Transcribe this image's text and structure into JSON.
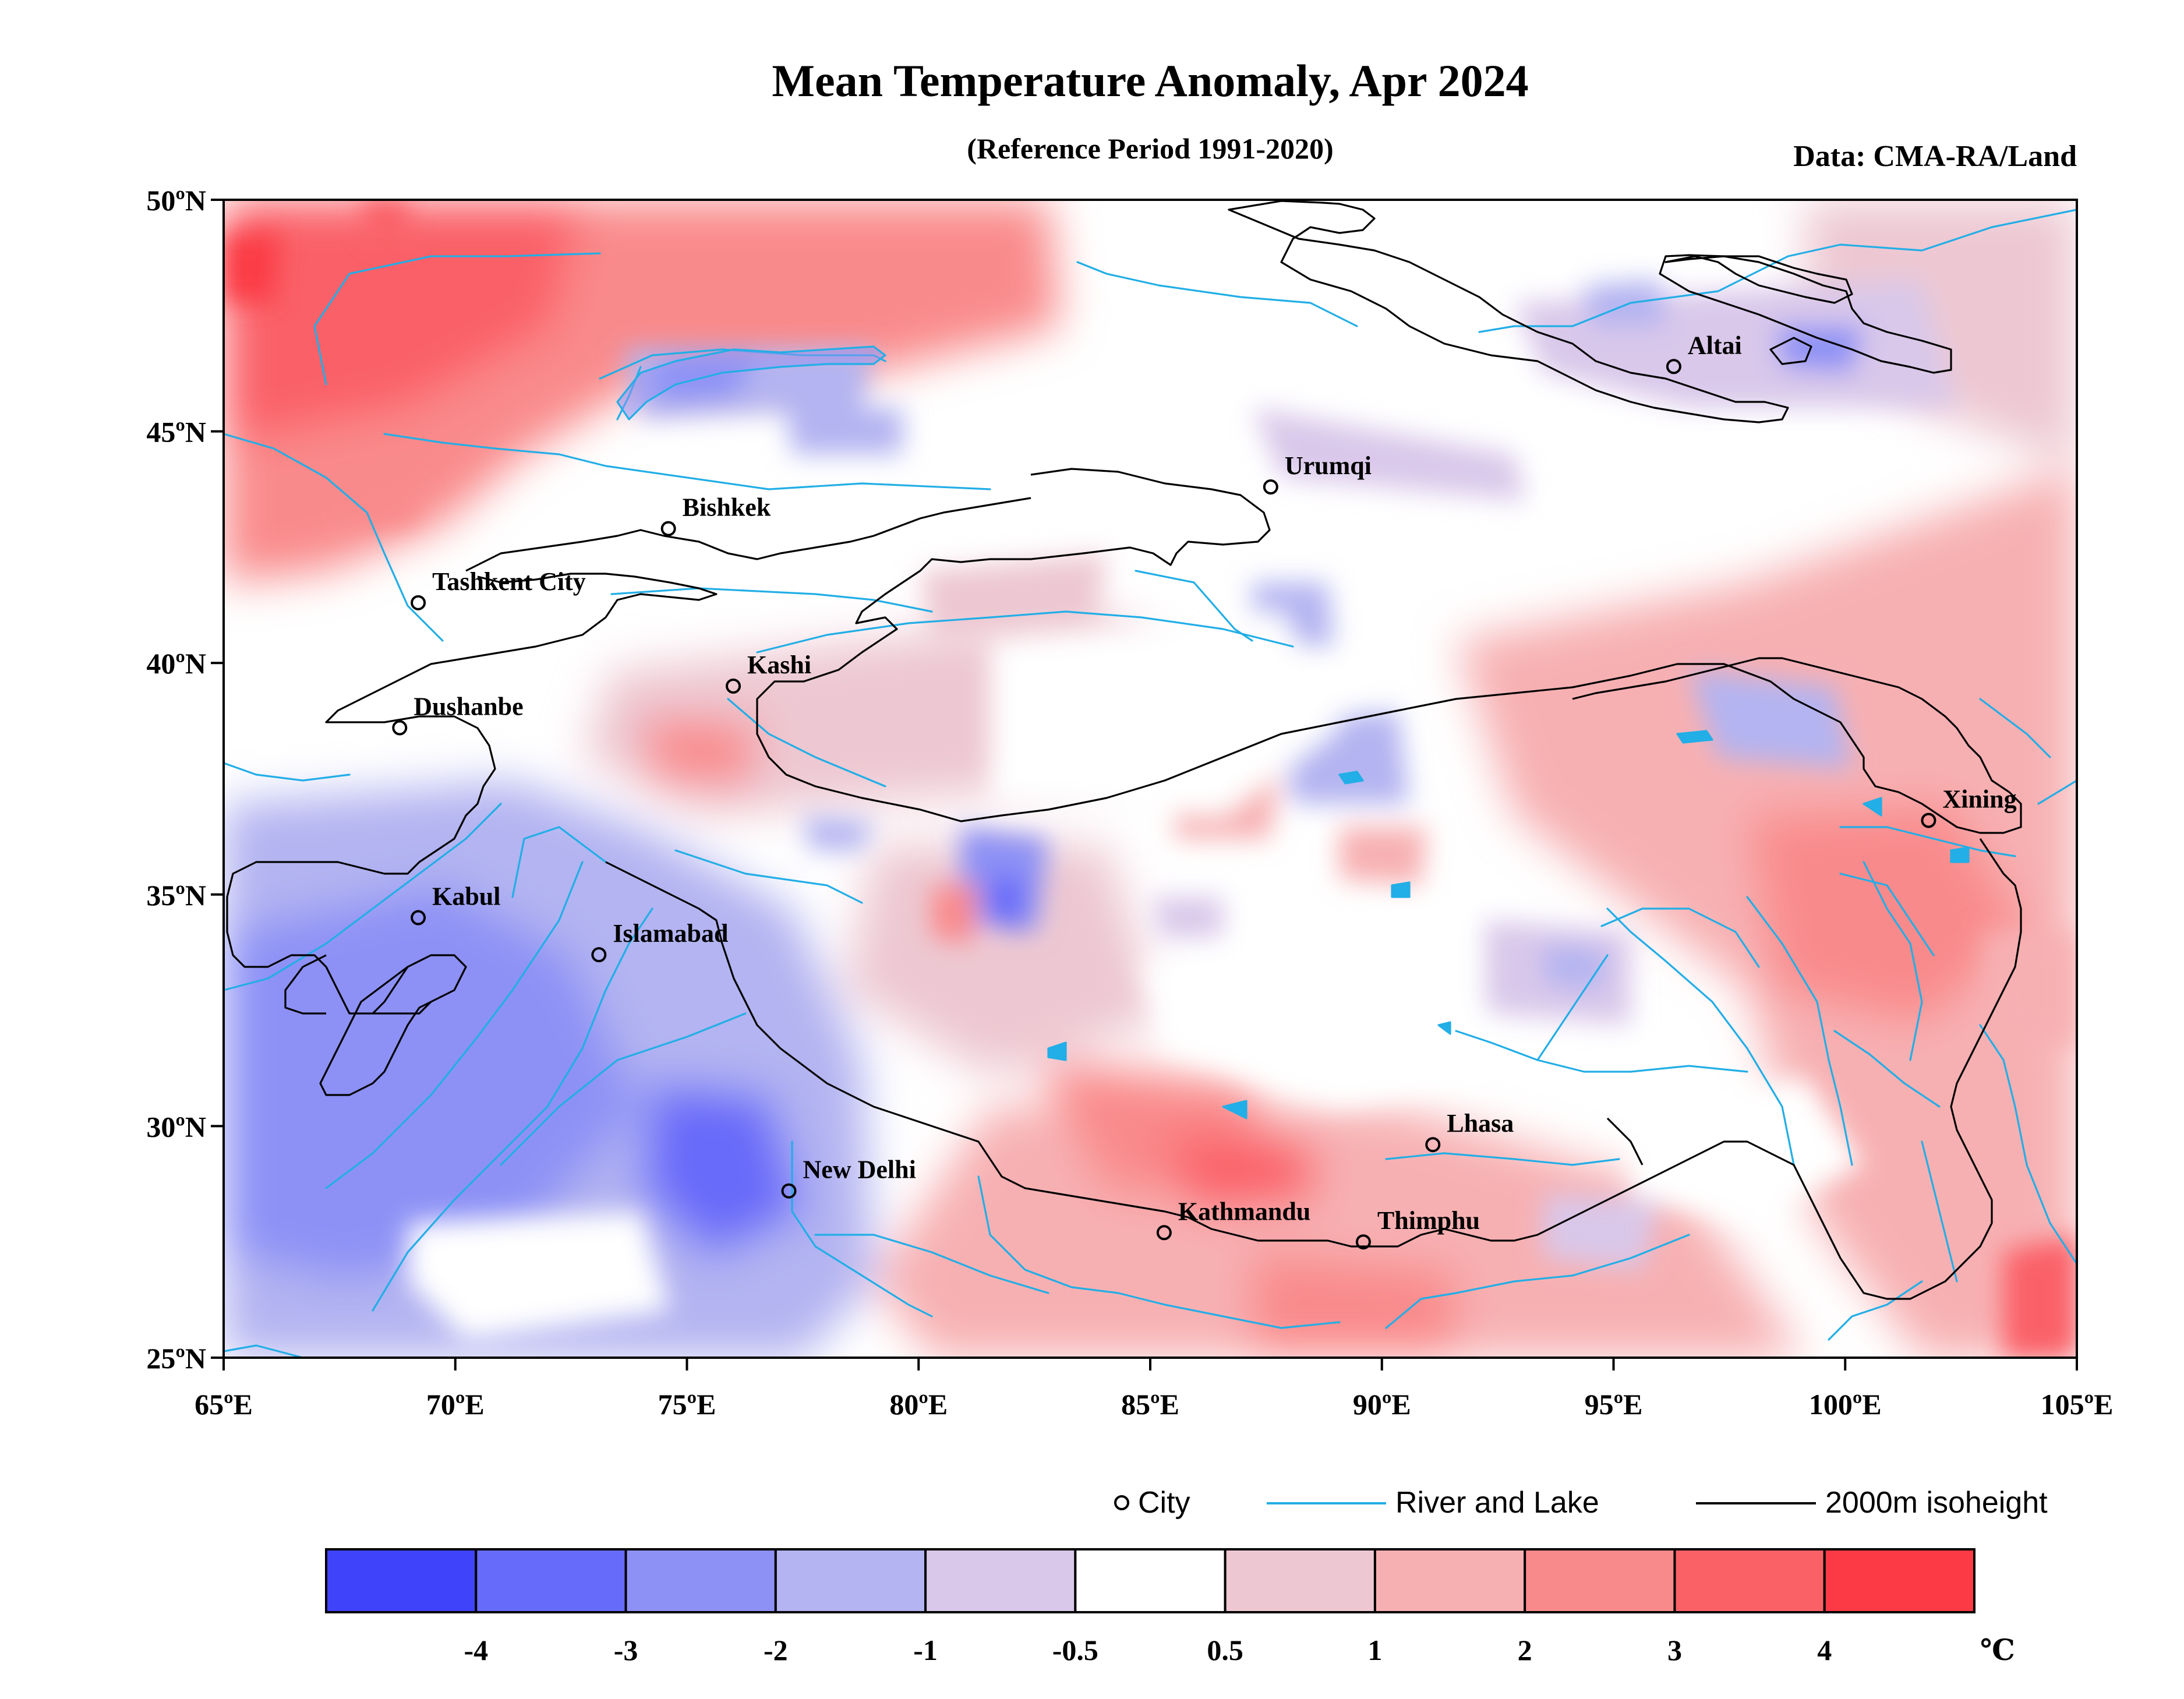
{
  "title": "Mean Temperature Anomaly, Apr 2024",
  "subtitle": "(Reference Period 1991-2020)",
  "source": "Data: CMA-RA/Land",
  "lat_labels": [
    {
      "lat": 50,
      "label": "50ºN"
    },
    {
      "lat": 45,
      "label": "45ºN"
    },
    {
      "lat": 40,
      "label": "40ºN"
    },
    {
      "lat": 35,
      "label": "35ºN"
    },
    {
      "lat": 30,
      "label": "30ºN"
    },
    {
      "lat": 25,
      "label": "25ºN"
    }
  ],
  "lon_labels": [
    {
      "lon": 65,
      "label": "65ºE"
    },
    {
      "lon": 70,
      "label": "70ºE"
    },
    {
      "lon": 75,
      "label": "75ºE"
    },
    {
      "lon": 80,
      "label": "80ºE"
    },
    {
      "lon": 85,
      "label": "85ºE"
    },
    {
      "lon": 90,
      "label": "90ºE"
    },
    {
      "lon": 95,
      "label": "95ºE"
    },
    {
      "lon": 100,
      "label": "100ºE"
    },
    {
      "lon": 105,
      "label": "105ºE"
    }
  ],
  "cities": [
    {
      "name": "Altai",
      "lon": 96.3,
      "lat": 46.4
    },
    {
      "name": "Urumqi",
      "lon": 87.6,
      "lat": 43.8
    },
    {
      "name": "Bishkek",
      "lon": 74.6,
      "lat": 42.9
    },
    {
      "name": "Tashkent City",
      "lon": 69.2,
      "lat": 41.3
    },
    {
      "name": "Kashi",
      "lon": 76.0,
      "lat": 39.5
    },
    {
      "name": "Dushanbe",
      "lon": 68.8,
      "lat": 38.6
    },
    {
      "name": "Kabul",
      "lon": 69.2,
      "lat": 34.5
    },
    {
      "name": "Islamabad",
      "lon": 73.1,
      "lat": 33.7
    },
    {
      "name": "Xining",
      "lon": 101.8,
      "lat": 36.6
    },
    {
      "name": "Lhasa",
      "lon": 91.1,
      "lat": 29.6
    },
    {
      "name": "New Delhi",
      "lon": 77.2,
      "lat": 28.6
    },
    {
      "name": "Kathmandu",
      "lon": 85.3,
      "lat": 27.7
    },
    {
      "name": "Thimphu",
      "lon": 89.6,
      "lat": 27.5
    }
  ],
  "legend": {
    "city": "City",
    "river": "River and Lake",
    "isoheight": "2000m isoheight"
  },
  "colorbar": {
    "colors": [
      "#3f44fa",
      "#676bf9",
      "#8d91f5",
      "#b3b4f1",
      "#d9c8ea",
      "#ffffff",
      "#edc8d2",
      "#f7b0b2",
      "#f98a8b",
      "#fa6167",
      "#fb3a45"
    ],
    "ticks": [
      "-4",
      "-3",
      "-2",
      "-1",
      "-0.5",
      "0.5",
      "1",
      "2",
      "3",
      "4"
    ],
    "unit": "℃"
  },
  "style": {
    "river_color": "#22aee6",
    "boundary_color": "#000000"
  }
}
